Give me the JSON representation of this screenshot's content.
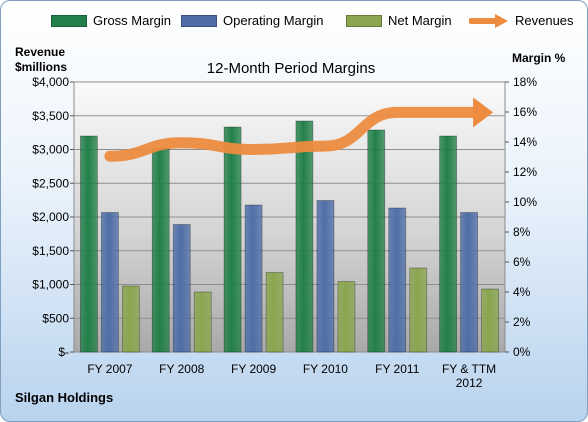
{
  "legend": [
    {
      "label": "Gross Margin",
      "color": "#23804a",
      "kind": "bar"
    },
    {
      "label": "Operating Margin",
      "color": "#4f6ea8",
      "kind": "bar"
    },
    {
      "label": "Net Margin",
      "color": "#8aa64f",
      "kind": "bar"
    },
    {
      "label": "Revenues",
      "color": "#ed8b3f",
      "kind": "arrow"
    }
  ],
  "left_axis_heading": {
    "line1": "Revenue",
    "line2": "$millions"
  },
  "right_axis_heading": "Margin %",
  "footer": "Silgan Holdings",
  "chart_data": {
    "type": "bar",
    "title": "12-Month Period Margins",
    "categories": [
      "FY 2007",
      "FY 2008",
      "FY 2009",
      "FY 2010",
      "FY 2011",
      "FY & TTM 2012"
    ],
    "series": [
      {
        "name": "Gross Margin",
        "axis": "right",
        "color": "#23804a",
        "values": [
          14.4,
          13.6,
          15.0,
          15.4,
          14.8,
          14.4
        ]
      },
      {
        "name": "Operating Margin",
        "axis": "right",
        "color": "#4f6ea8",
        "values": [
          9.3,
          8.5,
          9.8,
          10.1,
          9.6,
          9.3
        ]
      },
      {
        "name": "Net Margin",
        "axis": "right",
        "color": "#8aa64f",
        "values": [
          4.4,
          4.0,
          5.3,
          4.7,
          5.6,
          4.2
        ]
      },
      {
        "name": "Revenues",
        "axis": "left",
        "type": "line",
        "color": "#ed8b3f",
        "values": [
          2900,
          3100,
          3000,
          3050,
          3550,
          3550
        ]
      }
    ],
    "left_axis": {
      "ylim": [
        0,
        4000
      ],
      "ticks": [
        "$-",
        "$500",
        "$1,000",
        "$1,500",
        "$2,000",
        "$2,500",
        "$3,000",
        "$3,500",
        "$4,000"
      ]
    },
    "right_axis": {
      "ylim": [
        0,
        18
      ],
      "ticks": [
        "0%",
        "2%",
        "4%",
        "6%",
        "8%",
        "10%",
        "12%",
        "14%",
        "16%",
        "18%"
      ]
    },
    "grid": true,
    "legend_position": "top"
  }
}
